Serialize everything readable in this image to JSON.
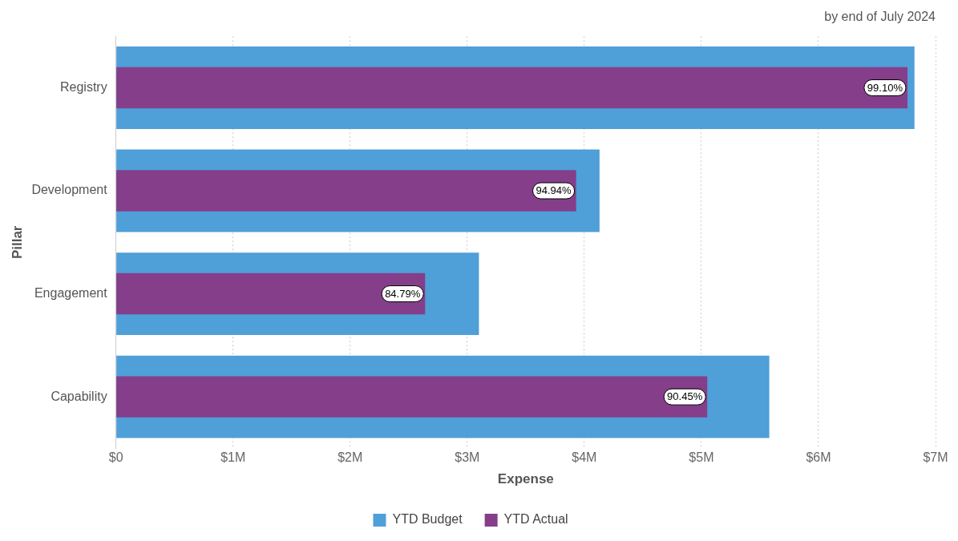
{
  "chart_data": {
    "type": "bar",
    "orientation": "horizontal",
    "subtitle": "by end of July 2024",
    "xlabel": "Expense",
    "ylabel": "Pillar",
    "categories": [
      "Registry",
      "Development",
      "Engagement",
      "Capability"
    ],
    "series": [
      {
        "name": "YTD Budget",
        "color": "#4f9fd8",
        "values": [
          6.82,
          4.13,
          3.1,
          5.58
        ]
      },
      {
        "name": "YTD Actual",
        "color": "#853e8a",
        "values": [
          6.76,
          3.93,
          2.64,
          5.05
        ]
      }
    ],
    "annotations": [
      {
        "text": "99.10%",
        "x": 6.76,
        "y": "Registry"
      },
      {
        "text": "94.94%",
        "x": 3.93,
        "y": "Development"
      },
      {
        "text": "84.79%",
        "x": 2.64,
        "y": "Engagement"
      },
      {
        "text": "90.45%",
        "x": 5.05,
        "y": "Capability"
      }
    ],
    "xlim": [
      0,
      7
    ],
    "xticks": [
      {
        "value": 0,
        "label": "$0"
      },
      {
        "value": 1,
        "label": "$1M"
      },
      {
        "value": 2,
        "label": "$2M"
      },
      {
        "value": 3,
        "label": "$3M"
      },
      {
        "value": 4,
        "label": "$4M"
      },
      {
        "value": 5,
        "label": "$5M"
      },
      {
        "value": 6,
        "label": "$6M"
      },
      {
        "value": 7,
        "label": "$7M"
      }
    ],
    "grid": "x",
    "legend": "bottom"
  }
}
